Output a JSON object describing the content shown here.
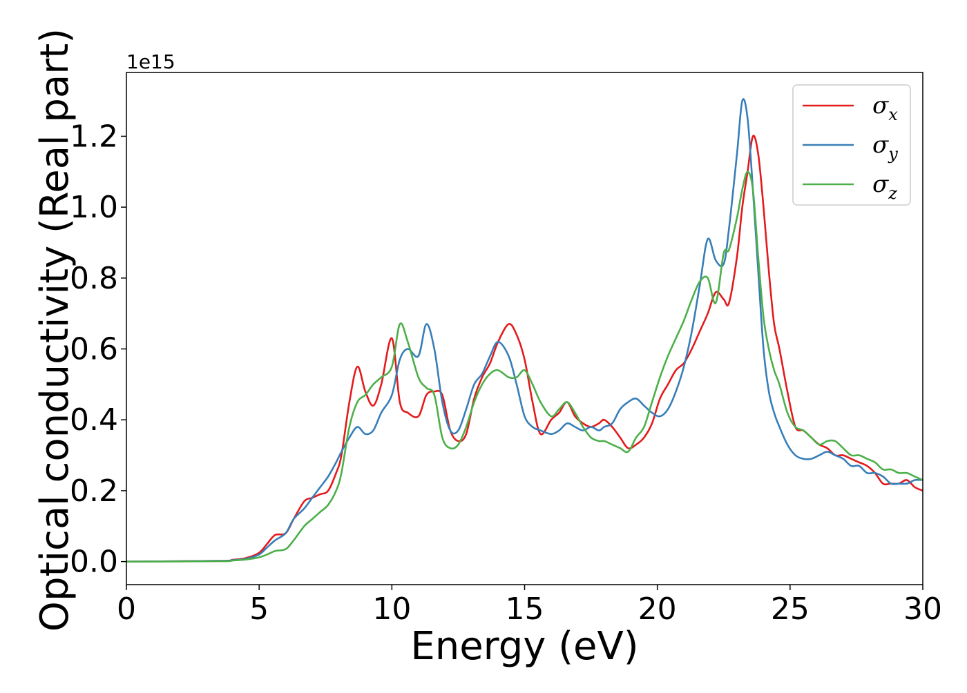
{
  "chart_data": {
    "type": "line",
    "title": "",
    "xlabel": "Energy (eV)",
    "ylabel": "Optical conductivity (Real part)",
    "y_offset_label": "1e15",
    "y_scale": 1000000000000000.0,
    "xlim": [
      0,
      30
    ],
    "ylim": [
      -0.065,
      1.38
    ],
    "x_ticks": [
      0,
      5,
      10,
      15,
      20,
      25,
      30
    ],
    "x_tick_labels": [
      "0",
      "5",
      "10",
      "15",
      "20",
      "25",
      "30"
    ],
    "y_ticks": [
      0.0,
      0.2,
      0.4,
      0.6,
      0.8,
      1.0,
      1.2
    ],
    "y_tick_labels": [
      "0.0",
      "0.2",
      "0.4",
      "0.6",
      "0.8",
      "1.0",
      "1.2"
    ],
    "grid": false,
    "legend_position": "top-right",
    "series": [
      {
        "name": "σx",
        "symbol": "σ",
        "subscript": "x",
        "color": "#e41a1c",
        "x": [
          0,
          3.5,
          4.0,
          4.5,
          5.0,
          5.3,
          5.6,
          6.0,
          6.3,
          6.7,
          7.0,
          7.3,
          7.6,
          7.9,
          8.1,
          8.4,
          8.7,
          9.0,
          9.3,
          9.6,
          10.0,
          10.3,
          10.6,
          11.0,
          11.3,
          11.6,
          11.9,
          12.2,
          12.5,
          12.8,
          13.1,
          13.4,
          13.7,
          14.0,
          14.4,
          14.7,
          15.0,
          15.3,
          15.6,
          16.0,
          16.3,
          16.6,
          16.9,
          17.2,
          17.5,
          17.8,
          18.0,
          18.3,
          18.6,
          18.9,
          19.2,
          19.5,
          19.8,
          20.1,
          20.4,
          20.7,
          21.0,
          21.3,
          21.6,
          21.9,
          22.2,
          22.5,
          22.7,
          23.0,
          23.2,
          23.4,
          23.6,
          23.8,
          24.0,
          24.2,
          24.4,
          24.6,
          24.9,
          25.2,
          25.5,
          25.8,
          26.1,
          26.4,
          26.7,
          27.0,
          27.3,
          27.6,
          27.9,
          28.2,
          28.5,
          28.8,
          29.1,
          29.4,
          29.7,
          30.0
        ],
        "values": [
          0.0,
          0.002,
          0.005,
          0.01,
          0.025,
          0.05,
          0.075,
          0.08,
          0.12,
          0.17,
          0.18,
          0.19,
          0.2,
          0.25,
          0.3,
          0.45,
          0.55,
          0.48,
          0.44,
          0.5,
          0.63,
          0.45,
          0.42,
          0.41,
          0.47,
          0.48,
          0.47,
          0.37,
          0.34,
          0.36,
          0.46,
          0.52,
          0.56,
          0.62,
          0.67,
          0.64,
          0.57,
          0.45,
          0.36,
          0.4,
          0.42,
          0.45,
          0.41,
          0.39,
          0.38,
          0.39,
          0.4,
          0.38,
          0.35,
          0.32,
          0.33,
          0.35,
          0.39,
          0.46,
          0.5,
          0.54,
          0.56,
          0.6,
          0.65,
          0.7,
          0.76,
          0.74,
          0.73,
          0.86,
          1.0,
          1.1,
          1.2,
          1.15,
          1.0,
          0.82,
          0.67,
          0.6,
          0.48,
          0.38,
          0.37,
          0.35,
          0.33,
          0.32,
          0.3,
          0.3,
          0.29,
          0.28,
          0.27,
          0.25,
          0.22,
          0.22,
          0.22,
          0.23,
          0.21,
          0.2
        ]
      },
      {
        "name": "σy",
        "symbol": "σ",
        "subscript": "y",
        "color": "#377eb8",
        "x": [
          0,
          3.5,
          4.0,
          4.5,
          5.0,
          5.3,
          5.6,
          6.0,
          6.3,
          6.7,
          7.0,
          7.3,
          7.6,
          7.9,
          8.1,
          8.4,
          8.7,
          9.0,
          9.3,
          9.6,
          10.0,
          10.3,
          10.6,
          11.0,
          11.3,
          11.6,
          11.9,
          12.2,
          12.5,
          12.8,
          13.1,
          13.4,
          13.7,
          14.0,
          14.4,
          14.7,
          15.0,
          15.3,
          15.6,
          16.0,
          16.3,
          16.6,
          16.9,
          17.2,
          17.5,
          17.8,
          18.0,
          18.3,
          18.6,
          18.9,
          19.2,
          19.5,
          19.8,
          20.1,
          20.4,
          20.7,
          21.0,
          21.3,
          21.6,
          21.9,
          22.2,
          22.5,
          22.7,
          23.0,
          23.2,
          23.4,
          23.6,
          23.8,
          24.0,
          24.2,
          24.4,
          24.6,
          24.9,
          25.2,
          25.5,
          25.8,
          26.1,
          26.4,
          26.7,
          27.0,
          27.3,
          27.6,
          27.9,
          28.2,
          28.5,
          28.8,
          29.1,
          29.4,
          29.7,
          30.0
        ],
        "values": [
          0.0,
          0.002,
          0.004,
          0.008,
          0.02,
          0.04,
          0.06,
          0.08,
          0.12,
          0.15,
          0.18,
          0.21,
          0.24,
          0.28,
          0.31,
          0.35,
          0.38,
          0.36,
          0.37,
          0.42,
          0.47,
          0.57,
          0.6,
          0.58,
          0.67,
          0.6,
          0.45,
          0.37,
          0.37,
          0.43,
          0.5,
          0.53,
          0.58,
          0.62,
          0.58,
          0.5,
          0.41,
          0.38,
          0.37,
          0.36,
          0.37,
          0.39,
          0.38,
          0.37,
          0.38,
          0.37,
          0.38,
          0.39,
          0.43,
          0.45,
          0.46,
          0.44,
          0.42,
          0.41,
          0.43,
          0.48,
          0.55,
          0.65,
          0.78,
          0.91,
          0.85,
          0.84,
          0.94,
          1.15,
          1.3,
          1.25,
          1.05,
          0.82,
          0.6,
          0.48,
          0.42,
          0.38,
          0.33,
          0.3,
          0.29,
          0.29,
          0.3,
          0.31,
          0.3,
          0.29,
          0.27,
          0.27,
          0.25,
          0.25,
          0.24,
          0.22,
          0.22,
          0.22,
          0.23,
          0.23
        ]
      },
      {
        "name": "σz",
        "symbol": "σ",
        "subscript": "z",
        "color": "#4daf4a",
        "x": [
          0,
          3.5,
          4.0,
          4.5,
          5.0,
          5.3,
          5.6,
          6.0,
          6.3,
          6.7,
          7.0,
          7.3,
          7.6,
          7.9,
          8.1,
          8.4,
          8.7,
          9.0,
          9.3,
          9.6,
          10.0,
          10.3,
          10.6,
          11.0,
          11.3,
          11.6,
          11.9,
          12.2,
          12.5,
          12.8,
          13.1,
          13.4,
          13.7,
          14.0,
          14.4,
          14.7,
          15.0,
          15.3,
          15.6,
          16.0,
          16.3,
          16.6,
          16.9,
          17.2,
          17.5,
          17.8,
          18.0,
          18.3,
          18.6,
          18.9,
          19.2,
          19.5,
          19.8,
          20.1,
          20.4,
          20.7,
          21.0,
          21.3,
          21.6,
          21.9,
          22.2,
          22.5,
          22.7,
          23.0,
          23.2,
          23.4,
          23.6,
          23.8,
          24.0,
          24.2,
          24.4,
          24.6,
          24.9,
          25.2,
          25.5,
          25.8,
          26.1,
          26.4,
          26.7,
          27.0,
          27.3,
          27.6,
          27.9,
          28.2,
          28.5,
          28.8,
          29.1,
          29.4,
          29.7,
          30.0
        ],
        "values": [
          0.0,
          0.001,
          0.003,
          0.006,
          0.012,
          0.02,
          0.03,
          0.035,
          0.06,
          0.1,
          0.12,
          0.14,
          0.16,
          0.2,
          0.25,
          0.38,
          0.45,
          0.47,
          0.5,
          0.52,
          0.55,
          0.67,
          0.62,
          0.52,
          0.49,
          0.47,
          0.35,
          0.32,
          0.33,
          0.38,
          0.45,
          0.5,
          0.53,
          0.54,
          0.52,
          0.52,
          0.54,
          0.5,
          0.45,
          0.41,
          0.43,
          0.45,
          0.42,
          0.38,
          0.35,
          0.34,
          0.34,
          0.33,
          0.32,
          0.31,
          0.35,
          0.38,
          0.45,
          0.52,
          0.58,
          0.63,
          0.68,
          0.74,
          0.79,
          0.8,
          0.73,
          0.87,
          0.88,
          0.97,
          1.05,
          1.1,
          1.05,
          0.86,
          0.69,
          0.6,
          0.54,
          0.5,
          0.42,
          0.38,
          0.37,
          0.35,
          0.33,
          0.34,
          0.34,
          0.32,
          0.3,
          0.3,
          0.29,
          0.28,
          0.26,
          0.26,
          0.25,
          0.25,
          0.24,
          0.23
        ]
      }
    ]
  }
}
